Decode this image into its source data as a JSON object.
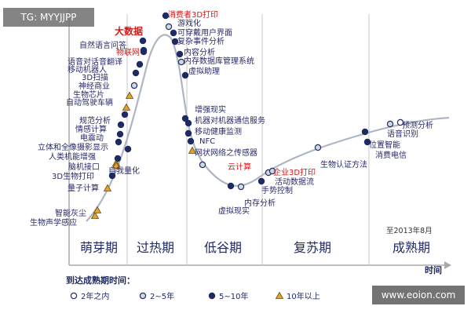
{
  "badge": "TG: MYYJJPP",
  "watermark": "www.eoion.com",
  "chart_data": {
    "type": "line",
    "title": "",
    "xlabel": "时间",
    "ylabel": "",
    "date_note": "至2013年8月",
    "phases": [
      "萌芽期",
      "过热期",
      "低谷期",
      "复苏期",
      "成熟期"
    ],
    "legend_title": "到达成熟期时间：",
    "legend": [
      {
        "key": "lt2",
        "label": "2年之内",
        "marker": "open-circle"
      },
      {
        "key": "y2to5",
        "label": "2~5年",
        "marker": "light-circle"
      },
      {
        "key": "y5to10",
        "label": "5~10年",
        "marker": "dark-circle"
      },
      {
        "key": "gt10",
        "label": "10年以上",
        "marker": "triangle"
      }
    ],
    "points": [
      {
        "label": "生物声学感应",
        "cat": "gt10"
      },
      {
        "label": "智能灰尘",
        "cat": "gt10"
      },
      {
        "label": "量子计算",
        "cat": "gt10"
      },
      {
        "label": "3D生物打印",
        "cat": "y5to10"
      },
      {
        "label": "人类机能增强",
        "cat": "gt10"
      },
      {
        "label": "立体和全像摄影显示",
        "cat": "y5to10"
      },
      {
        "label": "大数据",
        "cat": "y5to10",
        "style": "big-red"
      },
      {
        "label": "自然语言问答",
        "cat": "y5to10"
      },
      {
        "label": "物联网",
        "cat": "y5to10",
        "style": "red"
      },
      {
        "label": "语音对话音翻译",
        "cat": "y5to10"
      },
      {
        "label": "移动机器人",
        "cat": "y5to10"
      },
      {
        "label": "3D扫描",
        "cat": "y2to5"
      },
      {
        "label": "神经商业",
        "cat": "gt10"
      },
      {
        "label": "生物芯片",
        "cat": "gt10"
      },
      {
        "label": "自动驾驶车辆",
        "cat": "y5to10"
      },
      {
        "label": "规范分析",
        "cat": "y5to10"
      },
      {
        "label": "情感计算",
        "cat": "y5to10"
      },
      {
        "label": "电震动",
        "cat": "y5to10"
      },
      {
        "label": "脑机接口",
        "cat": "gt10"
      },
      {
        "label": "自我量化",
        "cat": "y5to10"
      },
      {
        "label": "消费者3D打印",
        "cat": "y5to10",
        "style": "red"
      },
      {
        "label": "游戏化",
        "cat": "y2to5"
      },
      {
        "label": "可穿戴用户界面",
        "cat": "y5to10"
      },
      {
        "label": "复杂事件分析",
        "cat": "y5to10"
      },
      {
        "label": "内容分析",
        "cat": "y5to10"
      },
      {
        "label": "内存数据库管理系统",
        "cat": "y2to5"
      },
      {
        "label": "虚拟助理",
        "cat": "y5to10"
      },
      {
        "label": "增强现实",
        "cat": "y5to10"
      },
      {
        "label": "机器对机器通信服务",
        "cat": "y5to10"
      },
      {
        "label": "移动健康监测",
        "cat": "y5to10"
      },
      {
        "label": "NFC",
        "cat": "y5to10"
      },
      {
        "label": "网状网络之传感器",
        "cat": "gt10"
      },
      {
        "label": "云计算",
        "cat": "y2to5",
        "style": "red"
      },
      {
        "label": "虚拟现实",
        "cat": "y5to10"
      },
      {
        "label": "内存分析",
        "cat": "y2to5"
      },
      {
        "label": "手势控制",
        "cat": "y5to10"
      },
      {
        "label": "活动数据流",
        "cat": "y2to5"
      },
      {
        "label": "企业3D打印",
        "cat": "y2to5",
        "style": "red"
      },
      {
        "label": "生物认证方法",
        "cat": "y2to5"
      },
      {
        "label": "位置智能",
        "cat": "y5to10"
      },
      {
        "label": "消费电信",
        "cat": "y5to10"
      },
      {
        "label": "语音识别",
        "cat": "y2to5"
      },
      {
        "label": "预测分析",
        "cat": "lt2"
      }
    ]
  }
}
